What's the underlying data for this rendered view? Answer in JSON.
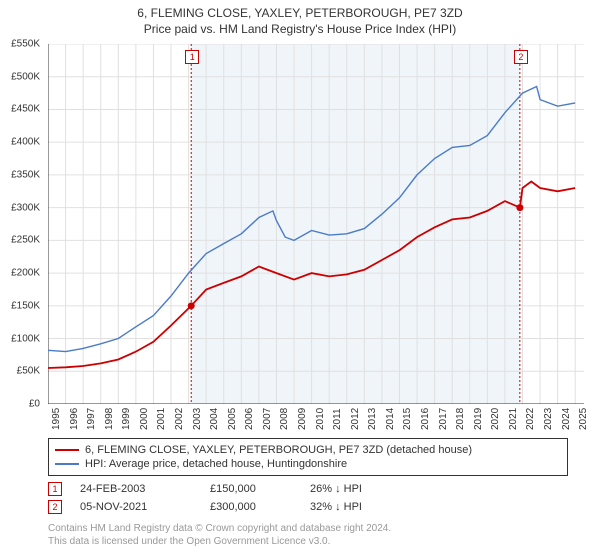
{
  "title_main": "6, FLEMING CLOSE, YAXLEY, PETERBOROUGH, PE7 3ZD",
  "title_sub": "Price paid vs. HM Land Registry's House Price Index (HPI)",
  "chart": {
    "type": "line",
    "background_color": "#ffffff",
    "shaded_region_color": "#f0f5fa",
    "shaded_region_start_year": 2003.15,
    "shaded_region_end_year": 2021.85,
    "grid_color": "#e0e0e0",
    "axis_color": "#333333",
    "x_range": [
      1995,
      2025.5
    ],
    "y_range": [
      0,
      550000
    ],
    "y_ticks": [
      0,
      50000,
      100000,
      150000,
      200000,
      250000,
      300000,
      350000,
      400000,
      450000,
      500000,
      550000
    ],
    "y_tick_labels": [
      "£0",
      "£50K",
      "£100K",
      "£150K",
      "£200K",
      "£250K",
      "£300K",
      "£350K",
      "£400K",
      "£450K",
      "£500K",
      "£550K"
    ],
    "x_ticks": [
      1995,
      1996,
      1997,
      1998,
      1999,
      2000,
      2001,
      2002,
      2003,
      2004,
      2005,
      2006,
      2007,
      2008,
      2009,
      2010,
      2011,
      2012,
      2013,
      2014,
      2015,
      2016,
      2017,
      2018,
      2019,
      2020,
      2021,
      2022,
      2023,
      2024,
      2025
    ],
    "label_fontsize": 10,
    "series": [
      {
        "name": "price_paid",
        "color": "#cc0000",
        "width": 1.8,
        "points": [
          [
            1995,
            55000
          ],
          [
            1996,
            56000
          ],
          [
            1997,
            58000
          ],
          [
            1998,
            62000
          ],
          [
            1999,
            68000
          ],
          [
            2000,
            80000
          ],
          [
            2001,
            95000
          ],
          [
            2002,
            120000
          ],
          [
            2003.15,
            150000
          ],
          [
            2004,
            175000
          ],
          [
            2005,
            185000
          ],
          [
            2006,
            195000
          ],
          [
            2007,
            210000
          ],
          [
            2008,
            200000
          ],
          [
            2009,
            190000
          ],
          [
            2010,
            200000
          ],
          [
            2011,
            195000
          ],
          [
            2012,
            198000
          ],
          [
            2013,
            205000
          ],
          [
            2014,
            220000
          ],
          [
            2015,
            235000
          ],
          [
            2016,
            255000
          ],
          [
            2017,
            270000
          ],
          [
            2018,
            282000
          ],
          [
            2019,
            285000
          ],
          [
            2020,
            295000
          ],
          [
            2021,
            310000
          ],
          [
            2021.85,
            300000
          ],
          [
            2022,
            330000
          ],
          [
            2022.5,
            340000
          ],
          [
            2023,
            330000
          ],
          [
            2024,
            325000
          ],
          [
            2025,
            330000
          ]
        ]
      },
      {
        "name": "hpi",
        "color": "#4a7bc8",
        "width": 1.4,
        "points": [
          [
            1995,
            82000
          ],
          [
            1996,
            80000
          ],
          [
            1997,
            85000
          ],
          [
            1998,
            92000
          ],
          [
            1999,
            100000
          ],
          [
            2000,
            118000
          ],
          [
            2001,
            135000
          ],
          [
            2002,
            165000
          ],
          [
            2003,
            200000
          ],
          [
            2004,
            230000
          ],
          [
            2005,
            245000
          ],
          [
            2006,
            260000
          ],
          [
            2007,
            285000
          ],
          [
            2007.8,
            295000
          ],
          [
            2008,
            280000
          ],
          [
            2008.5,
            255000
          ],
          [
            2009,
            250000
          ],
          [
            2010,
            265000
          ],
          [
            2011,
            258000
          ],
          [
            2012,
            260000
          ],
          [
            2013,
            268000
          ],
          [
            2014,
            290000
          ],
          [
            2015,
            315000
          ],
          [
            2016,
            350000
          ],
          [
            2017,
            375000
          ],
          [
            2018,
            392000
          ],
          [
            2019,
            395000
          ],
          [
            2020,
            410000
          ],
          [
            2021,
            445000
          ],
          [
            2022,
            475000
          ],
          [
            2022.8,
            485000
          ],
          [
            2023,
            465000
          ],
          [
            2024,
            455000
          ],
          [
            2025,
            460000
          ]
        ]
      }
    ],
    "markers": [
      {
        "id": "1",
        "year": 2003.15,
        "price": 150000,
        "color": "#cc0000"
      },
      {
        "id": "2",
        "year": 2021.85,
        "price": 300000,
        "color": "#cc0000"
      }
    ]
  },
  "legend": {
    "items": [
      {
        "color": "#cc0000",
        "label": "6, FLEMING CLOSE, YAXLEY, PETERBOROUGH, PE7 3ZD (detached house)"
      },
      {
        "color": "#4a7bc8",
        "label": "HPI: Average price, detached house, Huntingdonshire"
      }
    ]
  },
  "marker_rows": [
    {
      "id": "1",
      "color": "#cc0000",
      "date": "24-FEB-2003",
      "price": "£150,000",
      "pct": "26% ↓ HPI"
    },
    {
      "id": "2",
      "color": "#cc0000",
      "date": "05-NOV-2021",
      "price": "£300,000",
      "pct": "32% ↓ HPI"
    }
  ],
  "copyright_line1": "Contains HM Land Registry data © Crown copyright and database right 2024.",
  "copyright_line2": "This data is licensed under the Open Government Licence v3.0."
}
